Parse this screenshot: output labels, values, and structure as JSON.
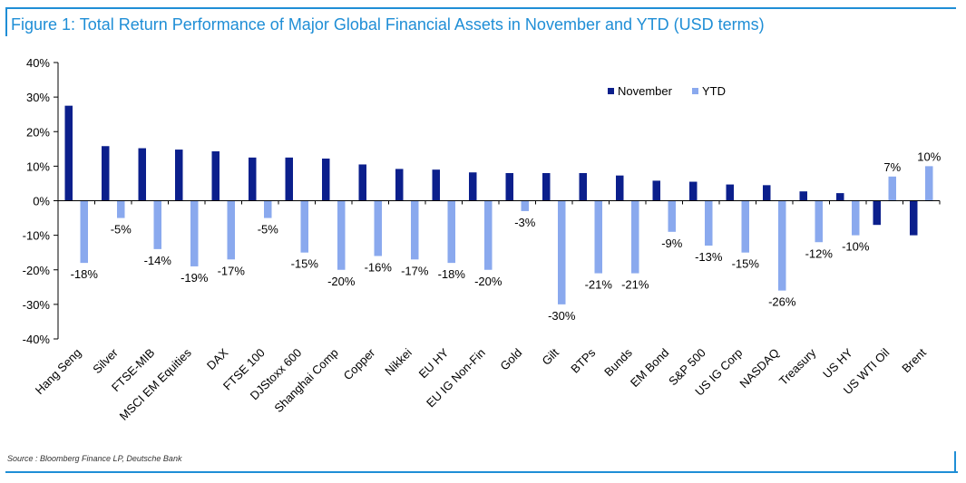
{
  "title": "Figure 1: Total Return Performance of Major Global Financial Assets in November and YTD (USD terms)",
  "source": "Source : Bloomberg Finance LP, Deutsche Bank",
  "colors": {
    "frame": "#1f8ed6",
    "title": "#1f8ed6",
    "november": "#0b1f8c",
    "ytd": "#8aa9ee",
    "axis": "#000000"
  },
  "chart_data": {
    "type": "bar",
    "title": "Figure 1: Total Return Performance of Major Global Financial Assets in November and YTD (USD terms)",
    "xlabel": "",
    "ylabel": "",
    "ylim": [
      -40,
      40
    ],
    "yticks": [
      40,
      30,
      20,
      10,
      0,
      -10,
      -20,
      -30,
      -40
    ],
    "ytick_labels": [
      "40%",
      "30%",
      "20%",
      "10%",
      "0%",
      "-10%",
      "-20%",
      "-30%",
      "-40%"
    ],
    "grid": false,
    "legend_position": "top-right",
    "categories": [
      "Hang Seng",
      "Silver",
      "FTSE-MIB",
      "MSCI EM Equities",
      "DAX",
      "FTSE 100",
      "DJStoxx 600",
      "Shanghai Comp",
      "Copper",
      "Nikkei",
      "EU HY",
      "EU IG Non-Fin",
      "Gold",
      "Gilt",
      "BTPs",
      "Bunds",
      "EM Bond",
      "S&P 500",
      "US IG Corp",
      "NASDAQ",
      "Treasury",
      "US HY",
      "US WTI Oil",
      "Brent"
    ],
    "series": [
      {
        "name": "November",
        "values": [
          27.5,
          15.8,
          15.2,
          14.8,
          14.3,
          12.5,
          12.5,
          12.2,
          10.5,
          9.2,
          9.0,
          8.2,
          8.0,
          8.0,
          8.0,
          7.3,
          5.8,
          5.5,
          4.7,
          4.5,
          2.7,
          2.2,
          -7.0,
          -10.0
        ]
      },
      {
        "name": "YTD",
        "values": [
          -18,
          -5,
          -14,
          -19,
          -17,
          -5,
          -15,
          -20,
          -16,
          -17,
          -18,
          -20,
          -3,
          -30,
          -21,
          -21,
          -9,
          -13,
          -15,
          -26,
          -12,
          -10,
          7,
          10
        ],
        "data_labels": [
          "-18%",
          "-5%",
          "-14%",
          "-19%",
          "-17%",
          "-5%",
          "-15%",
          "-20%",
          "-16%",
          "-17%",
          "-18%",
          "-20%",
          "-3%",
          "-30%",
          "-21%",
          "-21%",
          "-9%",
          "-13%",
          "-15%",
          "-26%",
          "-12%",
          "-10%",
          "7%",
          "10%"
        ]
      }
    ]
  }
}
